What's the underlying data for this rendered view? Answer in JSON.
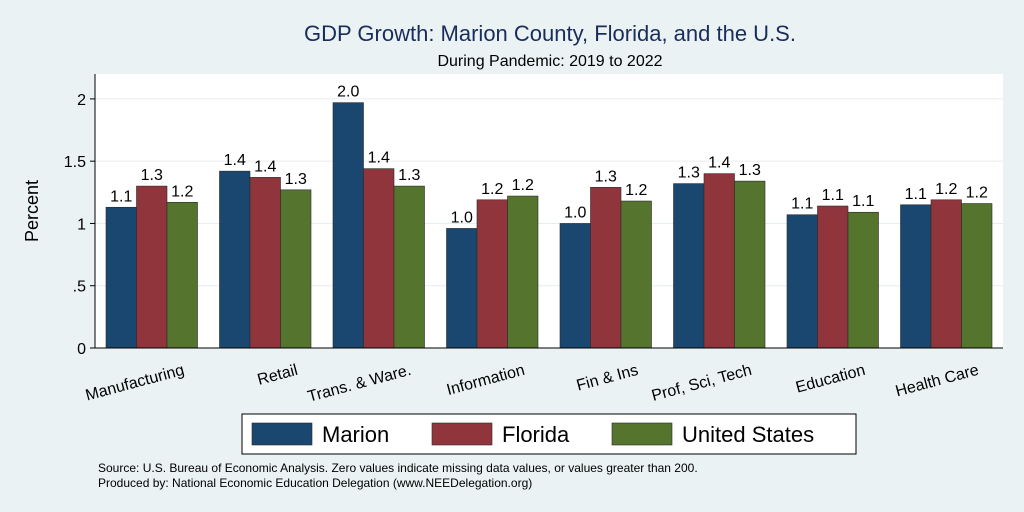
{
  "chart_data": {
    "type": "bar",
    "title": "GDP Growth: Marion County, Florida, and the U.S.",
    "subtitle": "During Pandemic: 2019 to 2022",
    "ylabel": "Percent",
    "xlabel": "",
    "ylim": [
      0,
      2.2
    ],
    "yticks": [
      0,
      0.5,
      1,
      1.5,
      2
    ],
    "ytick_labels": [
      "0",
      ".5",
      "1",
      "1.5",
      "2"
    ],
    "grid": true,
    "legend_position": "bottom",
    "categories": [
      "Manufacturing",
      "Retail",
      "Trans. & Ware.",
      "Information",
      "Fin & Ins",
      "Prof, Sci, Tech",
      "Education",
      "Health Care"
    ],
    "series": [
      {
        "name": "Marion",
        "color": "#1a476f",
        "values": [
          1.13,
          1.42,
          1.97,
          0.96,
          1.0,
          1.32,
          1.07,
          1.15
        ],
        "labels": [
          "1.1",
          "1.4",
          "2.0",
          "1.0",
          "1.0",
          "1.3",
          "1.1",
          "1.1"
        ]
      },
      {
        "name": "Florida",
        "color": "#90353b",
        "values": [
          1.3,
          1.37,
          1.44,
          1.19,
          1.29,
          1.4,
          1.14,
          1.19
        ],
        "labels": [
          "1.3",
          "1.4",
          "1.4",
          "1.2",
          "1.3",
          "1.4",
          "1.1",
          "1.2"
        ]
      },
      {
        "name": "United States",
        "color": "#55752f",
        "values": [
          1.17,
          1.27,
          1.3,
          1.22,
          1.18,
          1.34,
          1.09,
          1.16
        ],
        "labels": [
          "1.2",
          "1.3",
          "1.3",
          "1.2",
          "1.2",
          "1.3",
          "1.1",
          "1.2"
        ]
      }
    ]
  },
  "footer": {
    "source": "Source: U.S. Bureau of Economic Analysis. Zero values indicate missing data values, or values greater than 200.",
    "produced_by": "Produced by: National Economic Education Delegation (www.NEEDelegation.org)"
  }
}
